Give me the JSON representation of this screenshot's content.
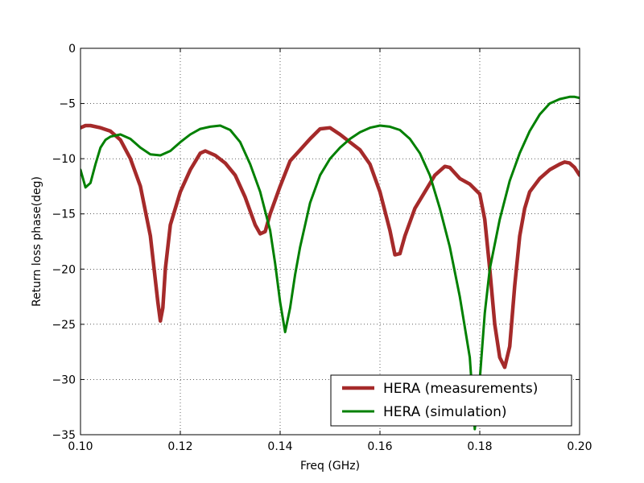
{
  "chart_data": {
    "type": "line",
    "xlabel": "Freq (GHz)",
    "ylabel": "Return loss phase(deg)",
    "xlim": [
      0.1,
      0.2
    ],
    "ylim": [
      -35,
      0
    ],
    "grid": true,
    "legend_position": "lower-right",
    "x_ticks": [
      0.1,
      0.12,
      0.14,
      0.16,
      0.18,
      0.2
    ],
    "x_tick_labels": [
      "0.10",
      "0.12",
      "0.14",
      "0.16",
      "0.18",
      "0.20"
    ],
    "y_ticks": [
      0,
      -5,
      -10,
      -15,
      -20,
      -25,
      -30,
      -35
    ],
    "y_tick_labels": [
      "0",
      "−5",
      "−10",
      "−15",
      "−20",
      "−25",
      "−30",
      "−35"
    ],
    "series": [
      {
        "name": "HERA (measurements)",
        "color": "#a52a2a",
        "points": [
          [
            0.1,
            -7.2
          ],
          [
            0.101,
            -7.0
          ],
          [
            0.102,
            -7.0
          ],
          [
            0.104,
            -7.2
          ],
          [
            0.106,
            -7.5
          ],
          [
            0.108,
            -8.3
          ],
          [
            0.11,
            -10.0
          ],
          [
            0.112,
            -12.5
          ],
          [
            0.114,
            -17.0
          ],
          [
            0.1155,
            -23.0
          ],
          [
            0.116,
            -24.7
          ],
          [
            0.1165,
            -23.5
          ],
          [
            0.117,
            -20.0
          ],
          [
            0.118,
            -16.0
          ],
          [
            0.12,
            -13.0
          ],
          [
            0.122,
            -11.0
          ],
          [
            0.124,
            -9.5
          ],
          [
            0.125,
            -9.3
          ],
          [
            0.127,
            -9.7
          ],
          [
            0.129,
            -10.4
          ],
          [
            0.131,
            -11.5
          ],
          [
            0.133,
            -13.5
          ],
          [
            0.135,
            -16.0
          ],
          [
            0.136,
            -16.8
          ],
          [
            0.137,
            -16.6
          ],
          [
            0.138,
            -15.0
          ],
          [
            0.14,
            -12.5
          ],
          [
            0.142,
            -10.2
          ],
          [
            0.144,
            -9.2
          ],
          [
            0.146,
            -8.2
          ],
          [
            0.148,
            -7.3
          ],
          [
            0.15,
            -7.2
          ],
          [
            0.152,
            -7.8
          ],
          [
            0.154,
            -8.5
          ],
          [
            0.156,
            -9.2
          ],
          [
            0.158,
            -10.5
          ],
          [
            0.16,
            -13.0
          ],
          [
            0.162,
            -16.5
          ],
          [
            0.163,
            -18.7
          ],
          [
            0.164,
            -18.6
          ],
          [
            0.165,
            -17.0
          ],
          [
            0.167,
            -14.5
          ],
          [
            0.169,
            -13.0
          ],
          [
            0.171,
            -11.5
          ],
          [
            0.173,
            -10.7
          ],
          [
            0.174,
            -10.8
          ],
          [
            0.176,
            -11.8
          ],
          [
            0.178,
            -12.3
          ],
          [
            0.18,
            -13.2
          ],
          [
            0.181,
            -15.5
          ],
          [
            0.182,
            -20.0
          ],
          [
            0.183,
            -25.0
          ],
          [
            0.184,
            -28.0
          ],
          [
            0.185,
            -28.9
          ],
          [
            0.186,
            -27.0
          ],
          [
            0.187,
            -21.5
          ],
          [
            0.188,
            -17.0
          ],
          [
            0.189,
            -14.5
          ],
          [
            0.19,
            -13.0
          ],
          [
            0.192,
            -11.8
          ],
          [
            0.194,
            -11.0
          ],
          [
            0.196,
            -10.5
          ],
          [
            0.197,
            -10.3
          ],
          [
            0.198,
            -10.4
          ],
          [
            0.199,
            -10.8
          ],
          [
            0.2,
            -11.5
          ]
        ]
      },
      {
        "name": "HERA (simulation)",
        "color": "#008000",
        "points": [
          [
            0.1,
            -11.0
          ],
          [
            0.101,
            -12.6
          ],
          [
            0.102,
            -12.2
          ],
          [
            0.103,
            -10.5
          ],
          [
            0.104,
            -9.0
          ],
          [
            0.105,
            -8.3
          ],
          [
            0.106,
            -8.0
          ],
          [
            0.108,
            -7.8
          ],
          [
            0.11,
            -8.2
          ],
          [
            0.112,
            -9.0
          ],
          [
            0.114,
            -9.6
          ],
          [
            0.116,
            -9.7
          ],
          [
            0.118,
            -9.3
          ],
          [
            0.12,
            -8.5
          ],
          [
            0.122,
            -7.8
          ],
          [
            0.124,
            -7.3
          ],
          [
            0.126,
            -7.1
          ],
          [
            0.128,
            -7.0
          ],
          [
            0.13,
            -7.4
          ],
          [
            0.132,
            -8.5
          ],
          [
            0.134,
            -10.5
          ],
          [
            0.136,
            -13.0
          ],
          [
            0.138,
            -16.5
          ],
          [
            0.139,
            -19.5
          ],
          [
            0.14,
            -23.0
          ],
          [
            0.141,
            -25.7
          ],
          [
            0.142,
            -23.5
          ],
          [
            0.143,
            -20.5
          ],
          [
            0.144,
            -18.0
          ],
          [
            0.146,
            -14.0
          ],
          [
            0.148,
            -11.5
          ],
          [
            0.15,
            -10.0
          ],
          [
            0.152,
            -9.0
          ],
          [
            0.154,
            -8.2
          ],
          [
            0.156,
            -7.6
          ],
          [
            0.158,
            -7.2
          ],
          [
            0.16,
            -7.0
          ],
          [
            0.162,
            -7.1
          ],
          [
            0.164,
            -7.4
          ],
          [
            0.166,
            -8.2
          ],
          [
            0.168,
            -9.5
          ],
          [
            0.17,
            -11.5
          ],
          [
            0.172,
            -14.5
          ],
          [
            0.174,
            -18.0
          ],
          [
            0.176,
            -22.5
          ],
          [
            0.178,
            -28.0
          ],
          [
            0.179,
            -34.5
          ],
          [
            0.18,
            -30.0
          ],
          [
            0.181,
            -24.0
          ],
          [
            0.182,
            -20.0
          ],
          [
            0.184,
            -15.5
          ],
          [
            0.186,
            -12.0
          ],
          [
            0.188,
            -9.5
          ],
          [
            0.19,
            -7.5
          ],
          [
            0.192,
            -6.0
          ],
          [
            0.194,
            -5.0
          ],
          [
            0.196,
            -4.6
          ],
          [
            0.198,
            -4.4
          ],
          [
            0.199,
            -4.4
          ],
          [
            0.2,
            -4.5
          ]
        ]
      }
    ]
  }
}
